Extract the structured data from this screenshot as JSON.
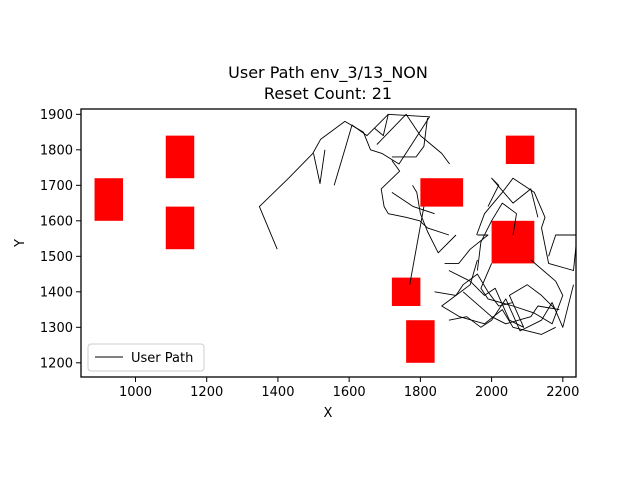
{
  "chart_data": {
    "type": "line",
    "title": "User Path env_3/13_NON",
    "subtitle": "Reset Count: 21",
    "xlabel": "X",
    "ylabel": "Y",
    "xlim": [
      847,
      2237
    ],
    "ylim": [
      1160,
      1915
    ],
    "x_ticks": [
      1000,
      1200,
      1400,
      1600,
      1800,
      2000,
      2200
    ],
    "y_ticks": [
      1200,
      1300,
      1400,
      1500,
      1600,
      1700,
      1800,
      1900
    ],
    "legend": {
      "position": "lower-left",
      "entries": [
        {
          "label": "User Path",
          "color": "#000000"
        }
      ]
    },
    "grid": false,
    "obstacles": [
      {
        "x0": 885,
        "x1": 965,
        "y0": 1600,
        "y1": 1720,
        "color": "#ff0000"
      },
      {
        "x0": 1085,
        "x1": 1165,
        "y0": 1720,
        "y1": 1840,
        "color": "#ff0000"
      },
      {
        "x0": 1085,
        "x1": 1165,
        "y0": 1520,
        "y1": 1640,
        "color": "#ff0000"
      },
      {
        "x0": 1800,
        "x1": 1920,
        "y0": 1640,
        "y1": 1720,
        "color": "#ff0000"
      },
      {
        "x0": 2040,
        "x1": 2120,
        "y0": 1760,
        "y1": 1840,
        "color": "#ff0000"
      },
      {
        "x0": 2000,
        "x1": 2120,
        "y0": 1480,
        "y1": 1600,
        "color": "#ff0000"
      },
      {
        "x0": 1720,
        "x1": 1800,
        "y0": 1360,
        "y1": 1440,
        "color": "#ff0000"
      },
      {
        "x0": 1760,
        "x1": 1840,
        "y0": 1200,
        "y1": 1320,
        "color": "#ff0000"
      }
    ],
    "series": [
      {
        "name": "User Path",
        "color": "#000000",
        "segments": [
          [
            [
              1398,
              1520
            ],
            [
              1348,
              1640
            ],
            [
              1430,
              1720
            ],
            [
              1498,
              1790
            ],
            [
              1520,
              1830
            ],
            [
              1588,
              1880
            ],
            [
              1640,
              1850
            ],
            [
              1660,
              1800
            ],
            [
              1692,
              1790
            ],
            [
              1740,
              1760
            ],
            [
              1826,
              1893
            ],
            [
              1708,
              1900
            ]
          ],
          [
            [
              1500,
              1790
            ],
            [
              1518,
              1705
            ],
            [
              1532,
              1800
            ]
          ],
          [
            [
              1558,
              1700
            ],
            [
              1590,
              1808
            ],
            [
              1608,
              1870
            ],
            [
              1650,
              1840
            ],
            [
              1710,
              1900
            ],
            [
              1696,
              1840
            ],
            [
              1672,
              1860
            ]
          ],
          [
            [
              1678,
              1815
            ],
            [
              1760,
              1900
            ],
            [
              1800,
              1840
            ],
            [
              1860,
              1790
            ],
            [
              1882,
              1760
            ]
          ],
          [
            [
              1720,
              1770
            ],
            [
              1742,
              1740
            ],
            [
              1690,
              1690
            ],
            [
              1698,
              1640
            ],
            [
              1710,
              1620
            ],
            [
              1760,
              1610
            ],
            [
              1798,
              1600
            ],
            [
              1820,
              1580
            ],
            [
              1880,
              1560
            ]
          ],
          [
            [
              1820,
              1890
            ],
            [
              1810,
              1810
            ],
            [
              1788,
              1780
            ],
            [
              1720,
              1780
            ]
          ],
          [
            [
              1778,
              1700
            ],
            [
              1790,
              1680
            ],
            [
              1800,
              1620
            ],
            [
              1820,
              1570
            ],
            [
              1850,
              1510
            ],
            [
              1900,
              1560
            ]
          ],
          [
            [
              1840,
              1620
            ],
            [
              1780,
              1640
            ],
            [
              1720,
              1680
            ]
          ],
          [
            [
              1810,
              1640
            ],
            [
              1770,
              1420
            ]
          ],
          [
            [
              1868,
              1480
            ],
            [
              1908,
              1480
            ],
            [
              1940,
              1520
            ],
            [
              1990,
              1560
            ],
            [
              1960,
              1560
            ]
          ],
          [
            [
              1880,
              1460
            ],
            [
              1940,
              1430
            ],
            [
              1980,
              1390
            ],
            [
              2010,
              1410
            ],
            [
              2050,
              1320
            ],
            [
              2090,
              1300
            ],
            [
              2050,
              1390
            ],
            [
              2100,
              1420
            ],
            [
              2140,
              1390
            ],
            [
              2180,
              1350
            ]
          ],
          [
            [
              1840,
              1400
            ],
            [
              1900,
              1390
            ],
            [
              1920,
              1420
            ],
            [
              1960,
              1450
            ],
            [
              1990,
              1400
            ],
            [
              2020,
              1360
            ],
            [
              2060,
              1370
            ]
          ],
          [
            [
              1958,
              1560
            ],
            [
              1980,
              1620
            ],
            [
              2030,
              1680
            ],
            [
              2060,
              1720
            ],
            [
              2120,
              1680
            ],
            [
              2150,
              1610
            ],
            [
              2140,
              1580
            ],
            [
              2160,
              1480
            ],
            [
              2230,
              1460
            ],
            [
              2240,
              1560
            ],
            [
              2180,
              1560
            ],
            [
              2160,
              1500
            ]
          ],
          [
            [
              1990,
              1640
            ],
            [
              2020,
              1700
            ],
            [
              2000,
              1720
            ],
            [
              2060,
              1650
            ],
            [
              2110,
              1690
            ],
            [
              2130,
              1610
            ]
          ],
          [
            [
              2000,
              1480
            ],
            [
              1970,
              1410
            ],
            [
              1990,
              1380
            ],
            [
              2060,
              1360
            ],
            [
              2120,
              1340
            ],
            [
              2170,
              1310
            ],
            [
              2200,
              1390
            ],
            [
              2180,
              1430
            ],
            [
              2110,
              1490
            ]
          ],
          [
            [
              1880,
              1320
            ],
            [
              1930,
              1330
            ],
            [
              1970,
              1300
            ],
            [
              2000,
              1320
            ],
            [
              2040,
              1380
            ],
            [
              2080,
              1290
            ],
            [
              2140,
              1320
            ],
            [
              2170,
              1370
            ],
            [
              2200,
              1300
            ],
            [
              2230,
              1420
            ]
          ],
          [
            [
              1960,
              1490
            ],
            [
              1940,
              1420
            ],
            [
              1900,
              1390
            ],
            [
              1860,
              1360
            ],
            [
              1910,
              1330
            ],
            [
              1980,
              1310
            ],
            [
              2030,
              1350
            ],
            [
              2060,
              1300
            ],
            [
              2140,
              1280
            ],
            [
              2180,
              1300
            ]
          ],
          [
            [
              2060,
              1560
            ],
            [
              2070,
              1620
            ],
            [
              2030,
              1650
            ],
            [
              2000,
              1600
            ],
            [
              1970,
              1540
            ],
            [
              1960,
              1460
            ]
          ],
          [
            [
              1920,
              1400
            ],
            [
              2000,
              1330
            ],
            [
              2040,
              1310
            ],
            [
              2110,
              1330
            ],
            [
              2130,
              1360
            ],
            [
              2190,
              1350
            ]
          ]
        ]
      }
    ]
  }
}
